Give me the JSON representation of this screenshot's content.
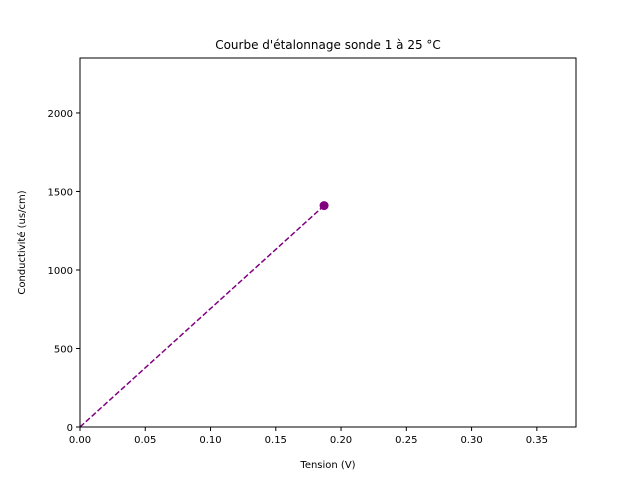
{
  "chart_data": {
    "type": "line",
    "title": "Courbe d'étalonnage sonde 1 à 25 °C",
    "xlabel": "Tension (V)",
    "ylabel": "Conductivité (us/cm)",
    "xlim": [
      0,
      0.38
    ],
    "ylim": [
      0,
      2350
    ],
    "xticks": [
      0.0,
      0.05,
      0.1,
      0.15,
      0.2,
      0.25,
      0.3,
      0.35
    ],
    "xtick_labels": [
      "0.00",
      "0.05",
      "0.10",
      "0.15",
      "0.20",
      "0.25",
      "0.30",
      "0.35"
    ],
    "yticks": [
      0,
      500,
      1000,
      1500,
      2000
    ],
    "ytick_labels": [
      "0",
      "500",
      "1000",
      "1500",
      "2000"
    ],
    "grid": false,
    "series": [
      {
        "color": "#800080",
        "line_style": "dashed",
        "x": [
          0.0,
          0.187
        ],
        "y": [
          0,
          1410
        ]
      },
      {
        "color": "#800080",
        "marker": "circle",
        "x": [
          0.187
        ],
        "y": [
          1410
        ]
      }
    ]
  }
}
